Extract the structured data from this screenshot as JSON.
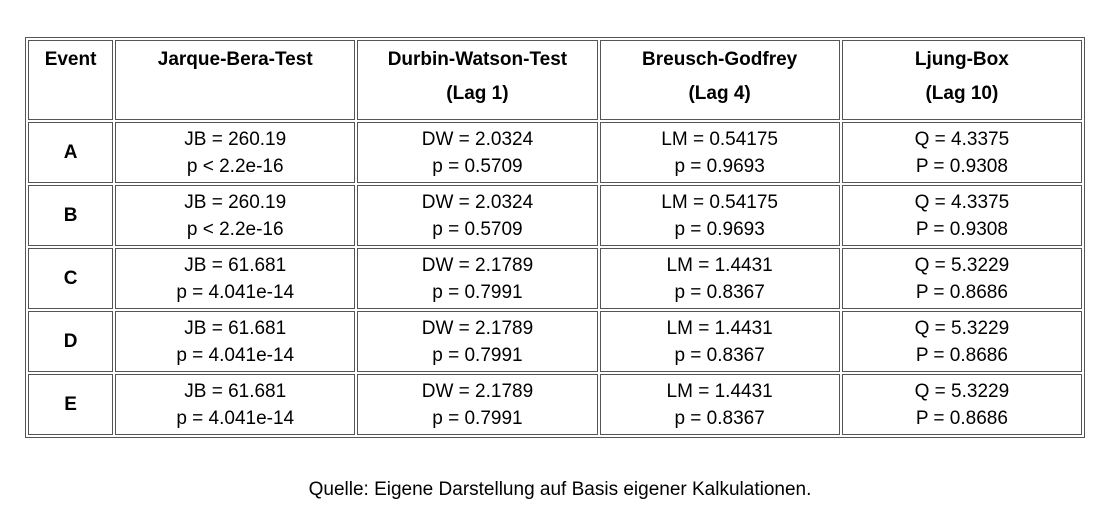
{
  "table": {
    "headers": [
      {
        "line1": "Event",
        "line2": ""
      },
      {
        "line1": "Jarque-Bera-Test",
        "line2": ""
      },
      {
        "line1": "Durbin-Watson-Test",
        "line2": "(Lag 1)"
      },
      {
        "line1": "Breusch-Godfrey",
        "line2": "(Lag 4)"
      },
      {
        "line1": "Ljung-Box",
        "line2": "(Lag 10)"
      }
    ],
    "rows": [
      {
        "event": "A",
        "jb": {
          "stat": "JB = 260.19",
          "p": "p < 2.2e-16"
        },
        "dw": {
          "stat": "DW = 2.0324",
          "p": "p = 0.5709"
        },
        "bg": {
          "stat": "LM = 0.54175",
          "p": "p = 0.9693"
        },
        "lb": {
          "stat": "Q = 4.3375",
          "p": "P = 0.9308"
        }
      },
      {
        "event": "B",
        "jb": {
          "stat": "JB = 260.19",
          "p": "p < 2.2e-16"
        },
        "dw": {
          "stat": "DW = 2.0324",
          "p": "p = 0.5709"
        },
        "bg": {
          "stat": "LM = 0.54175",
          "p": "p = 0.9693"
        },
        "lb": {
          "stat": "Q = 4.3375",
          "p": "P = 0.9308"
        }
      },
      {
        "event": "C",
        "jb": {
          "stat": "JB = 61.681",
          "p": "p = 4.041e-14"
        },
        "dw": {
          "stat": "DW = 2.1789",
          "p": "p = 0.7991"
        },
        "bg": {
          "stat": "LM = 1.4431",
          "p": "p = 0.8367"
        },
        "lb": {
          "stat": "Q = 5.3229",
          "p": "P = 0.8686"
        }
      },
      {
        "event": "D",
        "jb": {
          "stat": "JB = 61.681",
          "p": "p = 4.041e-14"
        },
        "dw": {
          "stat": "DW = 2.1789",
          "p": "p = 0.7991"
        },
        "bg": {
          "stat": "LM = 1.4431",
          "p": "p = 0.8367"
        },
        "lb": {
          "stat": "Q = 5.3229",
          "p": "P = 0.8686"
        }
      },
      {
        "event": "E",
        "jb": {
          "stat": "JB = 61.681",
          "p": "p = 4.041e-14"
        },
        "dw": {
          "stat": "DW = 2.1789",
          "p": "p = 0.7991"
        },
        "bg": {
          "stat": "LM = 1.4431",
          "p": "p = 0.8367"
        },
        "lb": {
          "stat": "Q = 5.3229",
          "p": "P = 0.8686"
        }
      }
    ]
  },
  "caption": "Quelle: Eigene Darstellung auf Basis eigener Kalkulationen."
}
